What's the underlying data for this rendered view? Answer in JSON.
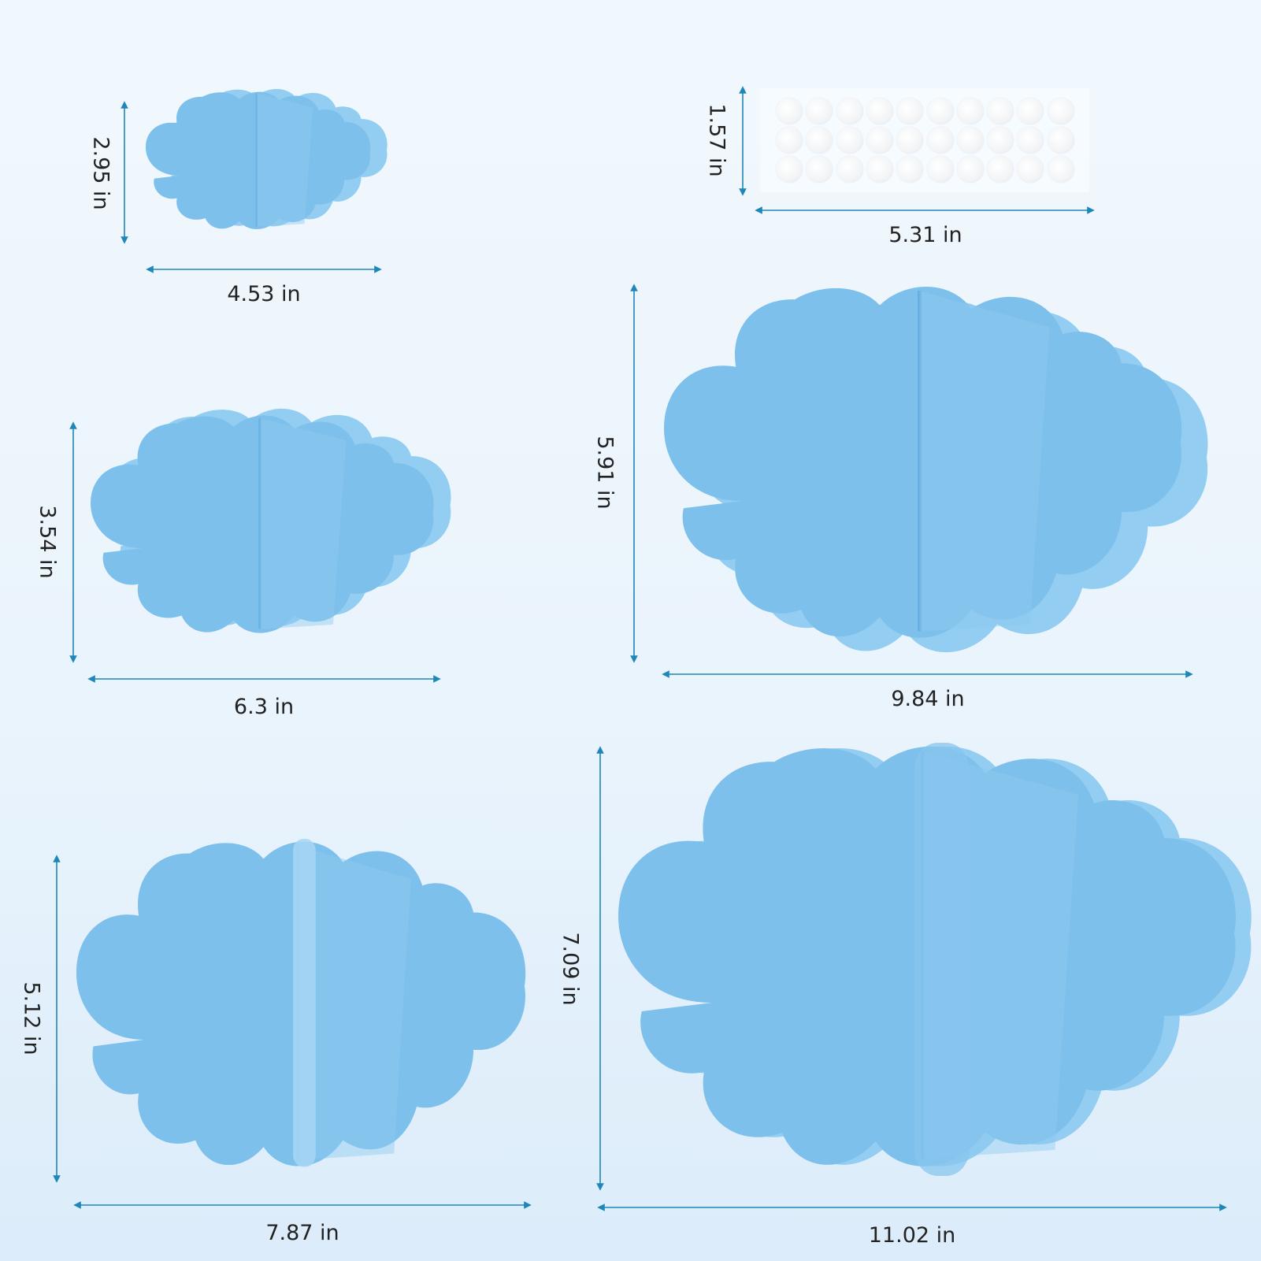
{
  "colors": {
    "cloud_front": "#7ec0ec",
    "cloud_mid": "#6cb4e6",
    "cloud_back": "#93cdf1",
    "dimension_line": "#1e86b8"
  },
  "pieces": [
    {
      "name": "cloud-xs",
      "width_label": "4.53 in",
      "height_label": "2.95 in"
    },
    {
      "name": "cloud-s",
      "width_label": "6.3 in",
      "height_label": "3.54 in"
    },
    {
      "name": "cloud-m",
      "width_label": "7.87 in",
      "height_label": "5.12 in"
    },
    {
      "name": "cloud-l",
      "width_label": "9.84 in",
      "height_label": "5.91 in"
    },
    {
      "name": "cloud-xl",
      "width_label": "11.02 in",
      "height_label": "7.09 in"
    }
  ],
  "adhesive_dots": {
    "width_label": "5.31 in",
    "height_label": "1.57 in",
    "rows": 3,
    "columns": 10
  }
}
